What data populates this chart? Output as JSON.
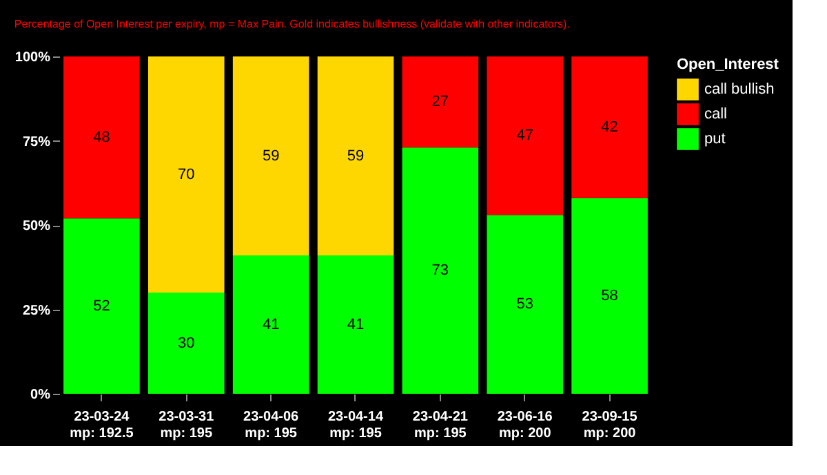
{
  "chart_data": {
    "type": "bar",
    "stacked": true,
    "subtitle": "Percentage of Open Interest per expiry, mp = Max Pain. Gold  indicates bullishness (validate with other indicators).",
    "categories": [
      "23-03-24\nmp: 192.5",
      "23-03-31\nmp: 195",
      "23-04-06\nmp: 195",
      "23-04-14\nmp: 195",
      "23-04-21\nmp: 195",
      "23-06-16\nmp: 200",
      "23-09-15\nmp: 200"
    ],
    "series": [
      {
        "name": "put",
        "color": "#00ff00",
        "values": [
          52,
          30,
          41,
          41,
          73,
          53,
          58
        ]
      },
      {
        "name": "call",
        "color": "#ff0000",
        "values": [
          48,
          null,
          null,
          null,
          27,
          47,
          42
        ]
      },
      {
        "name": "call bullish",
        "color": "#ffd700",
        "values": [
          null,
          70,
          59,
          59,
          null,
          null,
          null
        ]
      }
    ],
    "legend_title": "Open_Interest",
    "legend": "right",
    "data_labels": true,
    "grid": false,
    "ylim": [
      0,
      100
    ],
    "yticks": [
      {
        "value": 0,
        "label": "0%"
      },
      {
        "value": 25,
        "label": "25%"
      },
      {
        "value": 50,
        "label": "50%"
      },
      {
        "value": 75,
        "label": "75%"
      },
      {
        "value": 100,
        "label": "100%"
      }
    ]
  }
}
